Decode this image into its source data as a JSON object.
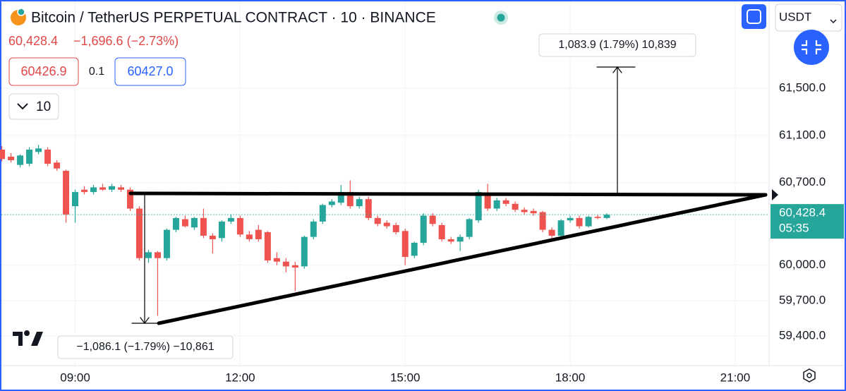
{
  "chart_data": {
    "type": "candlestick",
    "title": "Bitcoin / TetherUS PERPETUAL CONTRACT · 10 · BINANCE",
    "header": {
      "price": "60,428.4",
      "change": "−1,696.6 (−2.73%)",
      "bid": "60426.9",
      "spread": "0.1",
      "ask": "60427.0",
      "interval": "10",
      "currency": "USDT"
    },
    "annotations": [
      "1,083.9 (1.79%) 10,839",
      "−1,086.1 (−1.79%) −10,861"
    ],
    "last_price": {
      "value": 60428.4,
      "label": "60,428.4",
      "countdown": "05:35",
      "color": "#26a69a"
    },
    "up_color": "#26a69a",
    "down_color": "#ef5350",
    "grid": true,
    "xlim": [
      "07:38",
      "21:37"
    ],
    "xticks": [
      "09:00",
      "12:00",
      "15:00",
      "18:00",
      "21:00"
    ],
    "ylim": [
      59137,
      62248
    ],
    "yticks": [
      {
        "value": 59400,
        "label": "59,400.0"
      },
      {
        "value": 59700,
        "label": "59,700.0"
      },
      {
        "value": 60000,
        "label": "60,000.0"
      },
      {
        "value": 60700,
        "label": "60,700.0"
      },
      {
        "value": 61100,
        "label": "61,100.0"
      },
      {
        "value": 61500,
        "label": "61,500.0"
      }
    ],
    "x": [
      "07:40",
      "07:50",
      "08:00",
      "08:10",
      "08:20",
      "08:30",
      "08:40",
      "08:50",
      "09:00",
      "09:10",
      "09:20",
      "09:30",
      "09:40",
      "09:50",
      "10:00",
      "10:10",
      "10:20",
      "10:30",
      "10:40",
      "10:50",
      "11:00",
      "11:10",
      "11:20",
      "11:30",
      "11:40",
      "11:50",
      "12:00",
      "12:10",
      "12:20",
      "12:30",
      "12:40",
      "12:50",
      "13:00",
      "13:10",
      "13:20",
      "13:30",
      "13:40",
      "13:50",
      "14:00",
      "14:10",
      "14:20",
      "14:30",
      "14:40",
      "14:50",
      "15:00",
      "15:10",
      "15:20",
      "15:30",
      "15:40",
      "15:50",
      "16:00",
      "16:10",
      "16:20",
      "16:30",
      "16:40",
      "16:50",
      "17:00",
      "17:10",
      "17:20",
      "17:30",
      "17:40",
      "17:50",
      "18:00",
      "18:10",
      "18:20",
      "18:30",
      "18:40"
    ],
    "open": [
      60980,
      60920,
      60850,
      60860,
      60960,
      60980,
      60870,
      60800,
      60500,
      60640,
      60620,
      60660,
      60640,
      60660,
      60640,
      60480,
      60060,
      60110,
      60060,
      60300,
      60390,
      60320,
      60400,
      60250,
      60230,
      60370,
      60400,
      60260,
      60300,
      60280,
      60060,
      60030,
      60000,
      59990,
      60240,
      60370,
      60510,
      60530,
      60620,
      60500,
      60560,
      60400,
      60360,
      60340,
      60290,
      60080,
      60190,
      60420,
      60340,
      60220,
      60200,
      60240,
      60380,
      60610,
      60480,
      60550,
      60520,
      60470,
      60460,
      60450,
      60300,
      60250,
      60380,
      60400,
      60330,
      60410,
      60400
    ],
    "high": [
      61010,
      60950,
      60940,
      61000,
      61020,
      61000,
      60890,
      60810,
      60640,
      60670,
      60680,
      60690,
      60690,
      60680,
      60660,
      60500,
      60130,
      60120,
      60310,
      60410,
      60420,
      60410,
      60480,
      60270,
      60380,
      60430,
      60420,
      60290,
      60340,
      60290,
      60110,
      60060,
      60030,
      60250,
      60390,
      60520,
      60560,
      60680,
      60720,
      60580,
      60580,
      60420,
      60380,
      60360,
      60310,
      60200,
      60440,
      60440,
      60360,
      60240,
      60260,
      60400,
      60640,
      60690,
      60570,
      60570,
      60540,
      60490,
      60480,
      60460,
      60320,
      60390,
      60420,
      60420,
      60420,
      60430,
      60440
    ],
    "low": [
      60880,
      60870,
      60830,
      60840,
      60940,
      60840,
      60800,
      60360,
      60360,
      60600,
      60600,
      60630,
      60620,
      60620,
      60460,
      60040,
      60020,
      59570,
      60040,
      60280,
      60320,
      60300,
      60230,
      60100,
      60200,
      60350,
      60240,
      60200,
      60200,
      60020,
      60000,
      59940,
      59780,
      59970,
      60220,
      60350,
      60490,
      60510,
      60480,
      60480,
      60380,
      60330,
      60310,
      60260,
      60000,
      60060,
      60170,
      60330,
      60200,
      60180,
      60120,
      60220,
      60360,
      60460,
      60460,
      60500,
      60450,
      60430,
      60420,
      60280,
      60230,
      60240,
      60360,
      60310,
      60320,
      60390,
      60390
    ],
    "close": [
      60900,
      60890,
      60930,
      60980,
      60990,
      60860,
      60820,
      60430,
      60620,
      60620,
      60660,
      60640,
      60670,
      60640,
      60480,
      60060,
      60110,
      60060,
      60300,
      60400,
      60330,
      60400,
      60250,
      60220,
      60370,
      60400,
      60260,
      60220,
      60220,
      60040,
      60030,
      59990,
      59980,
      60240,
      60370,
      60510,
      60540,
      60620,
      60500,
      60560,
      60400,
      60350,
      60330,
      60280,
      60070,
      60190,
      60420,
      60350,
      60220,
      60200,
      60240,
      60390,
      60620,
      60480,
      60550,
      60520,
      60470,
      60450,
      60440,
      60300,
      60250,
      60380,
      60400,
      60330,
      60410,
      60400,
      60428.4
    ]
  }
}
